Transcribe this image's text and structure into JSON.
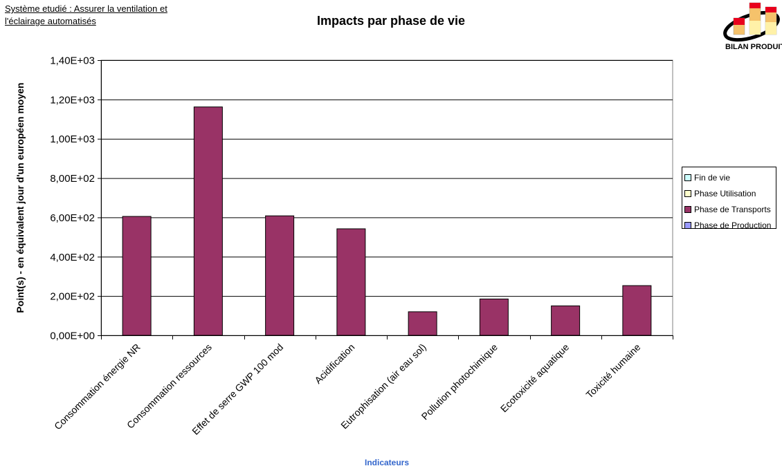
{
  "header": {
    "system_line1": "Système etudié : Assurer la ventilation et",
    "system_line2": "l'éclairage automatisés",
    "logo_text": "BILAN PRODUIT"
  },
  "colors": {
    "bar": "#993366",
    "gridline": "#000000",
    "xlabel": "#3366cc"
  },
  "chart_data": {
    "type": "bar",
    "title": "Impacts par phase de vie",
    "xlabel": "Indicateurs",
    "ylabel": "Point(s) - en équivalent jour d'un européen moyen",
    "ylim": [
      0,
      1400
    ],
    "yticks": [
      0,
      200,
      400,
      600,
      800,
      1000,
      1200,
      1400
    ],
    "ytick_labels": [
      "0,00E+00",
      "2,00E+02",
      "4,00E+02",
      "6,00E+02",
      "8,00E+02",
      "1,00E+03",
      "1,20E+03",
      "1,40E+03"
    ],
    "grid": true,
    "legend_position": "right",
    "categories": [
      "Consommation énergie NR",
      "Consommation ressources",
      "Effet de serre GWP 100 mod",
      "Acidification",
      "Eutrophisation (air eau sol)",
      "Pollution photochimique",
      "Ecotoxicité aquatique",
      "Toxicité humaine"
    ],
    "series": [
      {
        "name": "Fin de vie",
        "color": "#ccffff",
        "values": [
          0,
          0,
          0,
          0,
          0,
          0,
          0,
          0
        ]
      },
      {
        "name": "Phase Utilisation",
        "color": "#ffffcc",
        "values": [
          0,
          0,
          0,
          0,
          0,
          0,
          0,
          0
        ]
      },
      {
        "name": "Phase de Transports",
        "color": "#993366",
        "values": [
          605,
          1162,
          608,
          542,
          120,
          185,
          150,
          253
        ]
      },
      {
        "name": "Phase de Production",
        "color": "#9999ff",
        "values": [
          0,
          0,
          0,
          0,
          0,
          0,
          0,
          0
        ]
      }
    ]
  }
}
